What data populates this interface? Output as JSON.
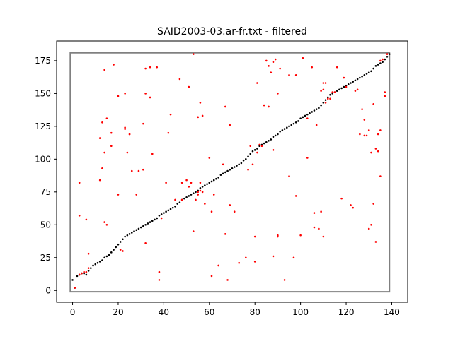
{
  "chart_data": {
    "type": "scatter",
    "title": "SAID2003-03.ar-fr.txt - filtered",
    "xlabel": "",
    "ylabel": "",
    "xlim": [
      -7,
      147
    ],
    "ylim": [
      -9,
      190
    ],
    "xticks": [
      0,
      20,
      40,
      60,
      80,
      100,
      120,
      140
    ],
    "yticks": [
      0,
      25,
      50,
      75,
      100,
      125,
      150,
      175
    ],
    "grid": false,
    "frame_box": {
      "x": [
        -1,
        139
      ],
      "y": [
        -1,
        181
      ],
      "color": "#808080"
    },
    "series": [
      {
        "color": "#000000",
        "points": [
          [
            0,
            8
          ],
          [
            1,
            2
          ],
          [
            2,
            11
          ],
          [
            3,
            12
          ],
          [
            4,
            13
          ],
          [
            5,
            13
          ],
          [
            6,
            12
          ],
          [
            7,
            15
          ],
          [
            8,
            17
          ],
          [
            9,
            19
          ],
          [
            10,
            20
          ],
          [
            11,
            21
          ],
          [
            12,
            22
          ],
          [
            13,
            23
          ],
          [
            14,
            25
          ],
          [
            15,
            26
          ],
          [
            16,
            27
          ],
          [
            17,
            29
          ],
          [
            18,
            31
          ],
          [
            19,
            33
          ],
          [
            20,
            35
          ],
          [
            21,
            37
          ],
          [
            22,
            39
          ],
          [
            23,
            41
          ],
          [
            24,
            42
          ],
          [
            25,
            43
          ],
          [
            26,
            44
          ],
          [
            27,
            45
          ],
          [
            28,
            46
          ],
          [
            29,
            47
          ],
          [
            30,
            48
          ],
          [
            31,
            49
          ],
          [
            32,
            50
          ],
          [
            33,
            51
          ],
          [
            34,
            52
          ],
          [
            35,
            53
          ],
          [
            36,
            54
          ],
          [
            37,
            55
          ],
          [
            38,
            57
          ],
          [
            39,
            58
          ],
          [
            40,
            59
          ],
          [
            41,
            60
          ],
          [
            42,
            61
          ],
          [
            43,
            62
          ],
          [
            44,
            63
          ],
          [
            45,
            64
          ],
          [
            46,
            66
          ],
          [
            47,
            67
          ],
          [
            48,
            69
          ],
          [
            49,
            70
          ],
          [
            50,
            71
          ],
          [
            51,
            72
          ],
          [
            52,
            73
          ],
          [
            53,
            74
          ],
          [
            54,
            75
          ],
          [
            55,
            76
          ],
          [
            56,
            78
          ],
          [
            57,
            79
          ],
          [
            58,
            80
          ],
          [
            59,
            81
          ],
          [
            60,
            82
          ],
          [
            61,
            83
          ],
          [
            62,
            84
          ],
          [
            63,
            85
          ],
          [
            64,
            86
          ],
          [
            65,
            88
          ],
          [
            66,
            89
          ],
          [
            67,
            90
          ],
          [
            68,
            91
          ],
          [
            69,
            92
          ],
          [
            70,
            93
          ],
          [
            71,
            94
          ],
          [
            72,
            95
          ],
          [
            73,
            96
          ],
          [
            74,
            97
          ],
          [
            75,
            99
          ],
          [
            76,
            100
          ],
          [
            77,
            102
          ],
          [
            78,
            104
          ],
          [
            79,
            106
          ],
          [
            80,
            107
          ],
          [
            81,
            108
          ],
          [
            82,
            110
          ],
          [
            83,
            111
          ],
          [
            84,
            112
          ],
          [
            85,
            113
          ],
          [
            86,
            114
          ],
          [
            87,
            115
          ],
          [
            88,
            117
          ],
          [
            89,
            118
          ],
          [
            90,
            119
          ],
          [
            91,
            121
          ],
          [
            92,
            122
          ],
          [
            93,
            123
          ],
          [
            94,
            124
          ],
          [
            95,
            125
          ],
          [
            96,
            126
          ],
          [
            97,
            127
          ],
          [
            98,
            128
          ],
          [
            99,
            129
          ],
          [
            100,
            131
          ],
          [
            101,
            132
          ],
          [
            102,
            133
          ],
          [
            103,
            134
          ],
          [
            104,
            135
          ],
          [
            105,
            136
          ],
          [
            106,
            137
          ],
          [
            107,
            138
          ],
          [
            108,
            139
          ],
          [
            109,
            141
          ],
          [
            110,
            143
          ],
          [
            111,
            145
          ],
          [
            112,
            147
          ],
          [
            113,
            149
          ],
          [
            114,
            150
          ],
          [
            115,
            151
          ],
          [
            116,
            152
          ],
          [
            117,
            153
          ],
          [
            118,
            154
          ],
          [
            119,
            155
          ],
          [
            120,
            156
          ],
          [
            121,
            157
          ],
          [
            122,
            158
          ],
          [
            123,
            159
          ],
          [
            124,
            160
          ],
          [
            125,
            161
          ],
          [
            126,
            162
          ],
          [
            127,
            163
          ],
          [
            128,
            164
          ],
          [
            129,
            165
          ],
          [
            130,
            166
          ],
          [
            131,
            167
          ],
          [
            132,
            169
          ],
          [
            133,
            171
          ],
          [
            134,
            172
          ],
          [
            135,
            173
          ],
          [
            136,
            174
          ],
          [
            137,
            176
          ],
          [
            138,
            178
          ],
          [
            139,
            180
          ]
        ]
      },
      {
        "color": "#ff0000",
        "points": [
          [
            1,
            2
          ],
          [
            3,
            12
          ],
          [
            4,
            13
          ],
          [
            5,
            14
          ],
          [
            6,
            14
          ],
          [
            7,
            17
          ],
          [
            3,
            57
          ],
          [
            6,
            54
          ],
          [
            3,
            82
          ],
          [
            7,
            28
          ],
          [
            12,
            84
          ],
          [
            12,
            116
          ],
          [
            13,
            93
          ],
          [
            13,
            128
          ],
          [
            14,
            105
          ],
          [
            15,
            131
          ],
          [
            14,
            168
          ],
          [
            14,
            52
          ],
          [
            15,
            50
          ],
          [
            17,
            110
          ],
          [
            17,
            120
          ],
          [
            18,
            172
          ],
          [
            20,
            73
          ],
          [
            20,
            148
          ],
          [
            21,
            31
          ],
          [
            22,
            30
          ],
          [
            23,
            124
          ],
          [
            23,
            123
          ],
          [
            23,
            150
          ],
          [
            24,
            105
          ],
          [
            25,
            119
          ],
          [
            25,
            119
          ],
          [
            26,
            91
          ],
          [
            28,
            73
          ],
          [
            29,
            91
          ],
          [
            31,
            127
          ],
          [
            31,
            92
          ],
          [
            32,
            36
          ],
          [
            32,
            169
          ],
          [
            32,
            150
          ],
          [
            34,
            170
          ],
          [
            34,
            147
          ],
          [
            35,
            104
          ],
          [
            37,
            170
          ],
          [
            38,
            14
          ],
          [
            38,
            8
          ],
          [
            39,
            55
          ],
          [
            41,
            82
          ],
          [
            42,
            120
          ],
          [
            43,
            134
          ],
          [
            45,
            69
          ],
          [
            47,
            161
          ],
          [
            48,
            82
          ],
          [
            48,
            69
          ],
          [
            50,
            84
          ],
          [
            51,
            155
          ],
          [
            51,
            79
          ],
          [
            52,
            82
          ],
          [
            53,
            45
          ],
          [
            53,
            180
          ],
          [
            54,
            69
          ],
          [
            55,
            75
          ],
          [
            55,
            73
          ],
          [
            55,
            132
          ],
          [
            56,
            76
          ],
          [
            56,
            82
          ],
          [
            56,
            143
          ],
          [
            57,
            133
          ],
          [
            57,
            75
          ],
          [
            58,
            66
          ],
          [
            60,
            101
          ],
          [
            61,
            11
          ],
          [
            61,
            60
          ],
          [
            62,
            73
          ],
          [
            64,
            19
          ],
          [
            66,
            96
          ],
          [
            67,
            140
          ],
          [
            67,
            43
          ],
          [
            68,
            8
          ],
          [
            69,
            65
          ],
          [
            69,
            126
          ],
          [
            71,
            60
          ],
          [
            73,
            21
          ],
          [
            76,
            25
          ],
          [
            77,
            92
          ],
          [
            78,
            110
          ],
          [
            79,
            96
          ],
          [
            80,
            41
          ],
          [
            80,
            22
          ],
          [
            81,
            158
          ],
          [
            81,
            105
          ],
          [
            82,
            111
          ],
          [
            83,
            110
          ],
          [
            84,
            141
          ],
          [
            85,
            175
          ],
          [
            86,
            140
          ],
          [
            86,
            171
          ],
          [
            87,
            166
          ],
          [
            88,
            26
          ],
          [
            88,
            107
          ],
          [
            88,
            174
          ],
          [
            89,
            176
          ],
          [
            90,
            41
          ],
          [
            90,
            42
          ],
          [
            90,
            150
          ],
          [
            91,
            169
          ],
          [
            93,
            8
          ],
          [
            95,
            87
          ],
          [
            95,
            164
          ],
          [
            97,
            25
          ],
          [
            98,
            164
          ],
          [
            98,
            72
          ],
          [
            100,
            42
          ],
          [
            101,
            177
          ],
          [
            103,
            131
          ],
          [
            103,
            101
          ],
          [
            105,
            170
          ],
          [
            106,
            48
          ],
          [
            106,
            59
          ],
          [
            107,
            126
          ],
          [
            108,
            47
          ],
          [
            109,
            60
          ],
          [
            109,
            152
          ],
          [
            110,
            153
          ],
          [
            110,
            41
          ],
          [
            110,
            158
          ],
          [
            111,
            143
          ],
          [
            111,
            158
          ],
          [
            112,
            146
          ],
          [
            113,
            146
          ],
          [
            114,
            151
          ],
          [
            115,
            151
          ],
          [
            116,
            170
          ],
          [
            118,
            70
          ],
          [
            119,
            162
          ],
          [
            120,
            155
          ],
          [
            122,
            65
          ],
          [
            123,
            63
          ],
          [
            124,
            152
          ],
          [
            125,
            153
          ],
          [
            126,
            119
          ],
          [
            127,
            138
          ],
          [
            128,
            130
          ],
          [
            128,
            118
          ],
          [
            129,
            118
          ],
          [
            130,
            122
          ],
          [
            130,
            47
          ],
          [
            131,
            50
          ],
          [
            131,
            105
          ],
          [
            132,
            66
          ],
          [
            132,
            142
          ],
          [
            133,
            37
          ],
          [
            134,
            106
          ],
          [
            135,
            175
          ],
          [
            135,
            87
          ],
          [
            136,
            176
          ],
          [
            137,
            148
          ],
          [
            137,
            151
          ],
          [
            138,
            180
          ],
          [
            135,
            122
          ],
          [
            134,
            119
          ],
          [
            133,
            108
          ]
        ]
      }
    ]
  }
}
